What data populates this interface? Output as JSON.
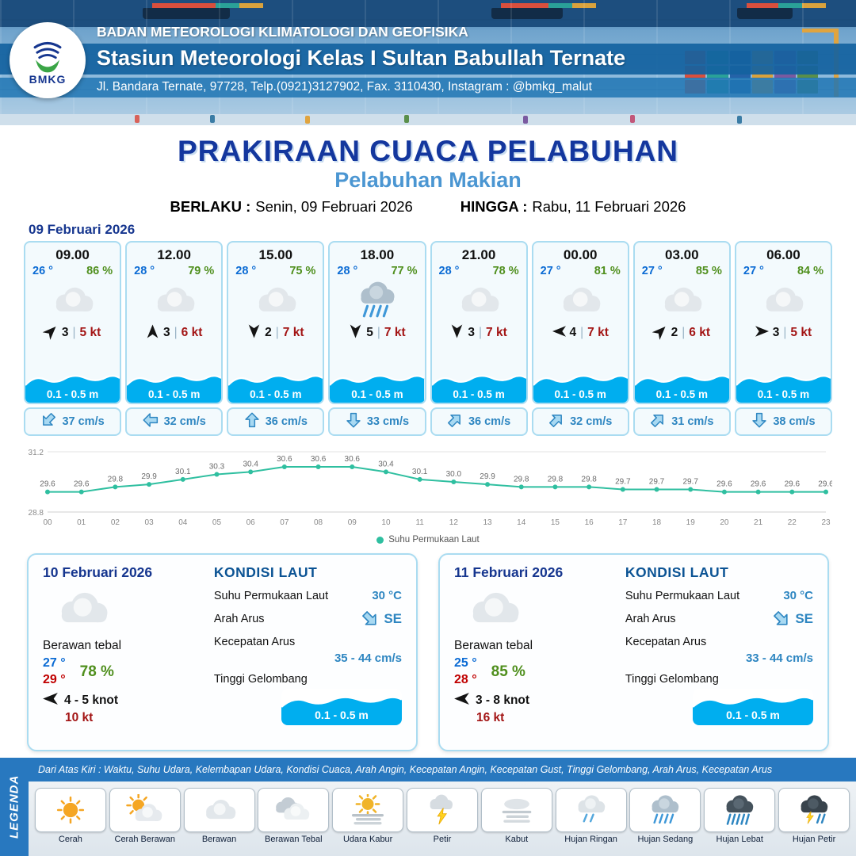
{
  "colors": {
    "navy": "#16368f",
    "title_blue": "#14379e",
    "sub_blue": "#4b96d2",
    "temp_blue": "#0b6bd4",
    "temp_red": "#c00000",
    "rh_green": "#4f8f1d",
    "kt_red": "#a31515",
    "wave_blue": "#00aeef",
    "current_blue": "#2e86c1",
    "band_blue": "#2878bf"
  },
  "header": {
    "logo_text": "BMKG",
    "agency": "BADAN METEOROLOGI KLIMATOLOGI DAN GEOFISIKA",
    "station": "Stasiun Meteorologi Kelas I Sultan Babullah Ternate",
    "address": "Jl. Bandara Ternate, 97728, Telp.(0921)3127902, Fax. 3110430, Instagram : @bmkg_malut"
  },
  "title": {
    "main": "PRAKIRAAN CUACA PELABUHAN",
    "sub": "Pelabuhan Makian",
    "berlaku_label": "BERLAKU :",
    "berlaku_value": "Senin, 09 Februari 2026",
    "hingga_label": "HINGGA :",
    "hingga_value": "Rabu, 11 Februari 2026"
  },
  "hourly": {
    "date": "09 Februari 2026",
    "cards": [
      {
        "time": "09.00",
        "temp": "26 °",
        "rh": "86 %",
        "icon": "berawan",
        "wind_dir": "NE",
        "wind_val": "3",
        "wind_kt": "5 kt",
        "wave": "0.1 - 0.5 m",
        "cur_dir": "SW",
        "cur": "37 cm/s"
      },
      {
        "time": "12.00",
        "temp": "28 °",
        "rh": "79 %",
        "icon": "berawan",
        "wind_dir": "N",
        "wind_val": "3",
        "wind_kt": "6 kt",
        "wave": "0.1 - 0.5 m",
        "cur_dir": "W",
        "cur": "32 cm/s"
      },
      {
        "time": "15.00",
        "temp": "28 °",
        "rh": "75 %",
        "icon": "berawan",
        "wind_dir": "S",
        "wind_val": "2",
        "wind_kt": "7 kt",
        "wave": "0.1 - 0.5 m",
        "cur_dir": "N",
        "cur": "36 cm/s"
      },
      {
        "time": "18.00",
        "temp": "28 °",
        "rh": "77 %",
        "icon": "hujan-sedang",
        "wind_dir": "S",
        "wind_val": "5",
        "wind_kt": "7 kt",
        "wave": "0.1 - 0.5 m",
        "cur_dir": "S",
        "cur": "33 cm/s"
      },
      {
        "time": "21.00",
        "temp": "28 °",
        "rh": "78 %",
        "icon": "berawan",
        "wind_dir": "S",
        "wind_val": "3",
        "wind_kt": "7 kt",
        "wave": "0.1 - 0.5 m",
        "cur_dir": "NE",
        "cur": "36 cm/s"
      },
      {
        "time": "00.00",
        "temp": "27 °",
        "rh": "81 %",
        "icon": "berawan",
        "wind_dir": "W",
        "wind_val": "4",
        "wind_kt": "7 kt",
        "wave": "0.1 - 0.5 m",
        "cur_dir": "NE",
        "cur": "32 cm/s"
      },
      {
        "time": "03.00",
        "temp": "27 °",
        "rh": "85 %",
        "icon": "berawan",
        "wind_dir": "NE",
        "wind_val": "2",
        "wind_kt": "6 kt",
        "wave": "0.1 - 0.5 m",
        "cur_dir": "NE",
        "cur": "31 cm/s"
      },
      {
        "time": "06.00",
        "temp": "27 °",
        "rh": "84 %",
        "icon": "berawan",
        "wind_dir": "E",
        "wind_val": "3",
        "wind_kt": "5 kt",
        "wave": "0.1 - 0.5 m",
        "cur_dir": "S",
        "cur": "38 cm/s"
      }
    ]
  },
  "chart_data": {
    "type": "line",
    "title": "",
    "xlabel": "",
    "ylabel": "",
    "ylim": [
      28.8,
      31.2
    ],
    "grid": false,
    "legend_position": "bottom",
    "line_color": "#2fbfa0",
    "x": [
      "00",
      "01",
      "02",
      "03",
      "04",
      "05",
      "06",
      "07",
      "08",
      "09",
      "10",
      "11",
      "12",
      "13",
      "14",
      "15",
      "16",
      "17",
      "18",
      "19",
      "20",
      "21",
      "22",
      "23"
    ],
    "series": [
      {
        "name": "Suhu Permukaan Laut",
        "values": [
          29.6,
          29.6,
          29.8,
          29.9,
          30.1,
          30.3,
          30.4,
          30.6,
          30.6,
          30.6,
          30.4,
          30.1,
          30.0,
          29.9,
          29.8,
          29.8,
          29.8,
          29.7,
          29.7,
          29.7,
          29.6,
          29.6,
          29.6,
          29.6
        ]
      }
    ]
  },
  "daily": [
    {
      "date": "10 Februari 2026",
      "icon": "berawan",
      "condition": "Berawan tebal",
      "temp_min": "27 °",
      "temp_max": "29 °",
      "rh": "78 %",
      "wind_dir": "W",
      "wind_range": "4 - 5 knot",
      "gust": "10 kt",
      "sea": {
        "heading": "KONDISI LAUT",
        "sst_label": "Suhu Permukaan Laut",
        "sst": "30 °C",
        "arus_label": "Arah Arus",
        "arus_dir": "SE",
        "kec_label": "Kecepatan Arus",
        "kec": "35 - 44 cm/s",
        "gel_label": "Tinggi Gelombang",
        "gel": "0.1 - 0.5 m"
      }
    },
    {
      "date": "11 Februari 2026",
      "icon": "berawan",
      "condition": "Berawan tebal",
      "temp_min": "25 °",
      "temp_max": "28 °",
      "rh": "85 %",
      "wind_dir": "W",
      "wind_range": "3 - 8 knot",
      "gust": "16 kt",
      "sea": {
        "heading": "KONDISI LAUT",
        "sst_label": "Suhu Permukaan Laut",
        "sst": "30 °C",
        "arus_label": "Arah Arus",
        "arus_dir": "SE",
        "kec_label": "Kecepatan Arus",
        "kec": "33 - 44 cm/s",
        "gel_label": "Tinggi Gelombang",
        "gel": "0.1 - 0.5 m"
      }
    }
  ],
  "legend": {
    "tab": "LEGENDA",
    "note": "Dari Atas Kiri : Waktu, Suhu Udara, Kelembapan Udara, Kondisi Cuaca, Arah Angin, Kecepatan Angin, Kecepatan Gust, Tinggi Gelombang, Arah Arus, Kecepatan Arus",
    "items": [
      {
        "icon": "cerah",
        "label": "Cerah"
      },
      {
        "icon": "cerah-berawan",
        "label": "Cerah Berawan"
      },
      {
        "icon": "berawan",
        "label": "Berawan"
      },
      {
        "icon": "berawan-tebal",
        "label": "Berawan Tebal"
      },
      {
        "icon": "udara-kabur",
        "label": "Udara Kabur"
      },
      {
        "icon": "petir",
        "label": "Petir"
      },
      {
        "icon": "kabut",
        "label": "Kabut"
      },
      {
        "icon": "hujan-ringan",
        "label": "Hujan Ringan"
      },
      {
        "icon": "hujan-sedang",
        "label": "Hujan Sedang"
      },
      {
        "icon": "hujan-lebat",
        "label": "Hujan Lebat"
      },
      {
        "icon": "hujan-petir",
        "label": "Hujan Petir"
      }
    ]
  }
}
